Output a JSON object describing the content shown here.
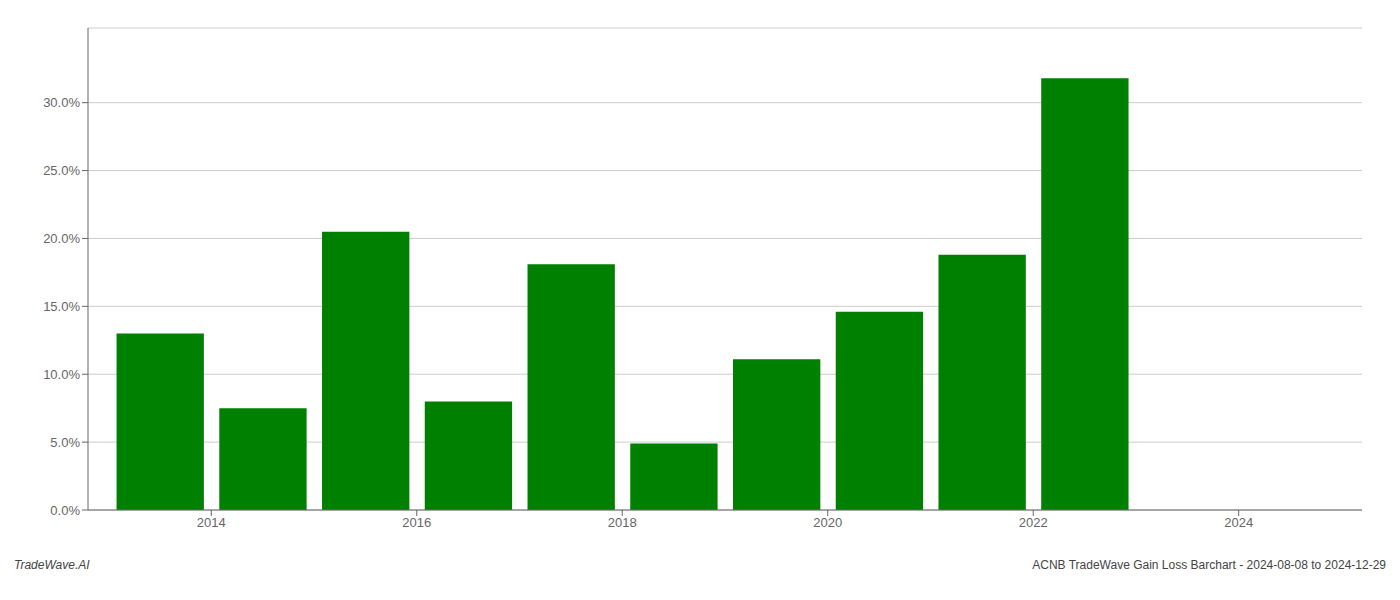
{
  "chart_data": {
    "type": "bar",
    "x": [
      2013,
      2014,
      2015,
      2016,
      2017,
      2018,
      2019,
      2020,
      2021,
      2022,
      2023
    ],
    "values": [
      0.13,
      0.075,
      0.205,
      0.08,
      0.181,
      0.049,
      0.111,
      0.146,
      0.188,
      0.318,
      null
    ],
    "color": "#008000",
    "xlim": [
      2012.3,
      2024.7
    ],
    "xticks": [
      {
        "value": 2013.5,
        "label": "2014"
      },
      {
        "value": 2015.5,
        "label": "2016"
      },
      {
        "value": 2017.5,
        "label": "2018"
      },
      {
        "value": 2019.5,
        "label": "2020"
      },
      {
        "value": 2021.5,
        "label": "2022"
      },
      {
        "value": 2023.5,
        "label": "2024"
      }
    ],
    "ylim": [
      0.0,
      0.355
    ],
    "yticks": [
      {
        "value": 0.0,
        "label": "0.0%"
      },
      {
        "value": 0.05,
        "label": "5.0%"
      },
      {
        "value": 0.1,
        "label": "10.0%"
      },
      {
        "value": 0.15,
        "label": "15.0%"
      },
      {
        "value": 0.2,
        "label": "20.0%"
      },
      {
        "value": 0.25,
        "label": "25.0%"
      },
      {
        "value": 0.3,
        "label": "30.0%"
      }
    ],
    "grid": true,
    "annotations": [
      "TradeWave.AI",
      "ACNB TradeWave Gain Loss Barchart - 2024-08-08 to 2024-12-29"
    ]
  }
}
